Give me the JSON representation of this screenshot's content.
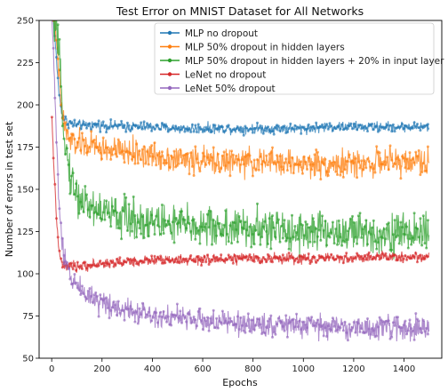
{
  "chart_data": {
    "type": "line",
    "title": "Test Error on MNIST Dataset for All Networks",
    "xlabel": "Epochs",
    "ylabel": "Number of errors in test set",
    "xlim": [
      -50,
      1550
    ],
    "ylim": [
      50,
      250
    ],
    "xticks": [
      0,
      200,
      400,
      600,
      800,
      1000,
      1200,
      1400
    ],
    "yticks": [
      50,
      75,
      100,
      125,
      150,
      175,
      200,
      225,
      250
    ],
    "legend_position": "upper-right",
    "grid": false,
    "series": [
      {
        "name": "MLP no dropout",
        "color": "#1f77b4",
        "x": [
          1,
          10,
          20,
          30,
          40,
          50,
          60,
          80,
          100,
          150,
          200,
          300,
          400,
          500,
          600,
          700,
          800,
          900,
          1000,
          1100,
          1200,
          1300,
          1400,
          1500
        ],
        "y": [
          260,
          245,
          225,
          205,
          196,
          192,
          190,
          189,
          188,
          188,
          188,
          187,
          187,
          186,
          186,
          186,
          186,
          186,
          186,
          187,
          187,
          187,
          187,
          187
        ],
        "noise": 1.5
      },
      {
        "name": "MLP 50% dropout in hidden layers",
        "color": "#ff7f0e",
        "x": [
          1,
          10,
          20,
          30,
          40,
          50,
          60,
          80,
          100,
          150,
          200,
          300,
          400,
          500,
          600,
          700,
          800,
          900,
          1000,
          1100,
          1200,
          1300,
          1400,
          1500
        ],
        "y": [
          262,
          250,
          235,
          215,
          198,
          188,
          182,
          178,
          177,
          176,
          174,
          172,
          170,
          168,
          167,
          166,
          166,
          166,
          165,
          165,
          165,
          166,
          166,
          167
        ],
        "noise": 4
      },
      {
        "name": "MLP 50% dropout in hidden layers + 20% in input layer",
        "color": "#2ca02c",
        "x": [
          1,
          10,
          20,
          30,
          40,
          50,
          60,
          80,
          100,
          150,
          200,
          300,
          400,
          500,
          600,
          700,
          800,
          900,
          1000,
          1100,
          1200,
          1300,
          1400,
          1500
        ],
        "y": [
          262,
          250,
          240,
          225,
          205,
          185,
          170,
          155,
          146,
          140,
          137,
          133,
          131,
          129,
          128,
          127,
          126,
          126,
          125,
          125,
          124,
          124,
          124,
          125
        ],
        "noise": 6
      },
      {
        "name": "LeNet no dropout",
        "color": "#d62728",
        "x": [
          1,
          10,
          20,
          30,
          40,
          50,
          60,
          80,
          100,
          150,
          200,
          300,
          400,
          500,
          600,
          700,
          800,
          900,
          1000,
          1100,
          1200,
          1300,
          1400,
          1500
        ],
        "y": [
          190,
          160,
          130,
          112,
          106,
          104,
          104,
          104,
          104,
          105,
          106,
          107,
          108,
          108,
          108,
          109,
          109,
          109,
          109,
          109,
          109,
          110,
          110,
          110
        ],
        "noise": 1.5
      },
      {
        "name": "LeNet 50% dropout",
        "color": "#9467bd",
        "x": [
          1,
          10,
          20,
          30,
          40,
          50,
          60,
          80,
          100,
          150,
          200,
          300,
          400,
          500,
          600,
          700,
          800,
          900,
          1000,
          1100,
          1200,
          1300,
          1400,
          1500
        ],
        "y": [
          250,
          220,
          175,
          140,
          118,
          108,
          104,
          98,
          93,
          87,
          83,
          79,
          76,
          74,
          72,
          71,
          70,
          70,
          69,
          69,
          68,
          68,
          68,
          67
        ],
        "noise": 3.5
      }
    ]
  }
}
